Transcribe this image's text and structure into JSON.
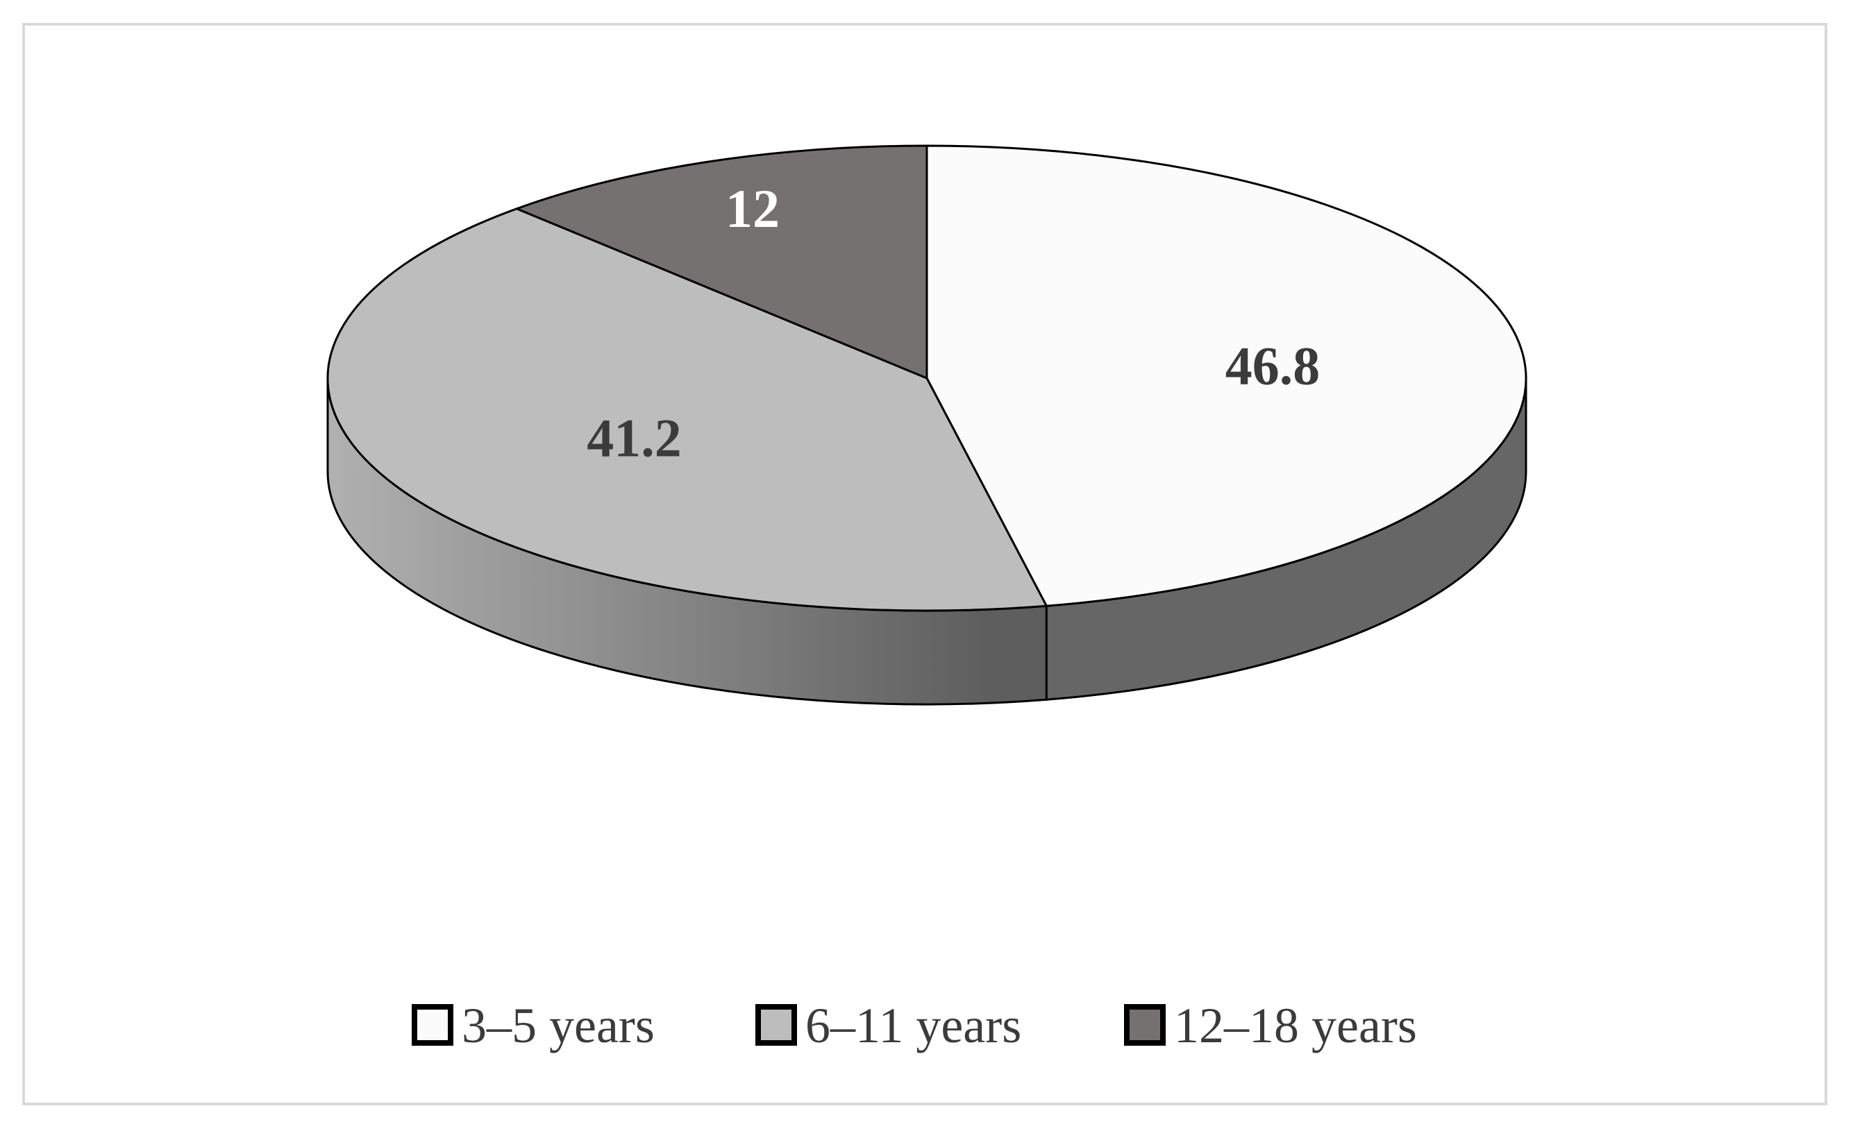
{
  "chart_data": {
    "type": "pie",
    "title": "",
    "labels": [
      "3–5 years",
      "6–11 years",
      "12–18 years"
    ],
    "values": [
      46.8,
      41.2,
      12
    ],
    "data_labels": [
      "46.8",
      "41.2",
      "12"
    ],
    "legend_position": "bottom",
    "colors": {
      "top": [
        "#fbfbfb",
        "#bdbdbd",
        "#767171"
      ],
      "side_light": "#b0b0b0",
      "side_dark": "#5e5e5e",
      "label_dark": "#3b3b3b",
      "label_light": "#ffffff",
      "stroke": "#000000"
    }
  }
}
